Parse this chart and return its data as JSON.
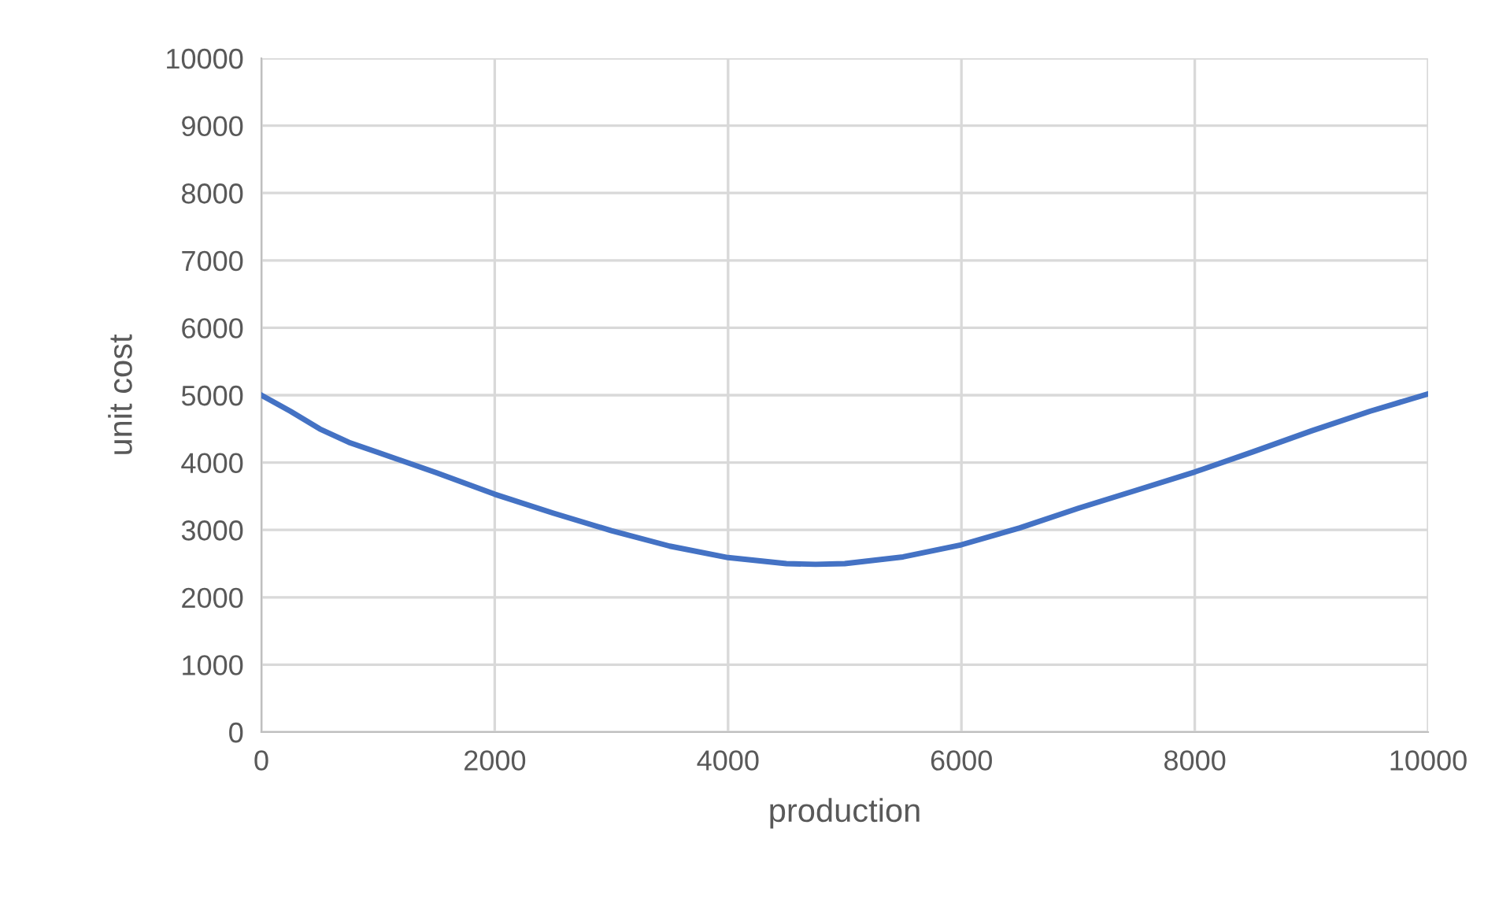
{
  "chart_data": {
    "type": "line",
    "xlabel": "production",
    "ylabel": "unit cost",
    "series": [
      {
        "color": "#4472c4",
        "x": [
          0,
          250,
          500,
          750,
          1000,
          1500,
          2000,
          2500,
          3000,
          3500,
          4000,
          4500,
          4750,
          5000,
          5500,
          6000,
          6500,
          7000,
          7500,
          8000,
          8500,
          9000,
          9500,
          10000
        ],
        "values": [
          5000,
          4760,
          4500,
          4300,
          4150,
          3850,
          3530,
          3250,
          2990,
          2760,
          2590,
          2500,
          2490,
          2500,
          2600,
          2780,
          3030,
          3320,
          3590,
          3860,
          4160,
          4470,
          4760,
          5020
        ]
      }
    ],
    "xlim": [
      0,
      10000
    ],
    "xticks": [
      0,
      2000,
      4000,
      6000,
      8000,
      10000
    ],
    "ylim": [
      0,
      10000
    ],
    "yticks": [
      0,
      1000,
      2000,
      3000,
      4000,
      5000,
      6000,
      7000,
      8000,
      9000,
      10000
    ],
    "grid": true,
    "marker": "none",
    "line_style": "solid",
    "legend": false
  }
}
